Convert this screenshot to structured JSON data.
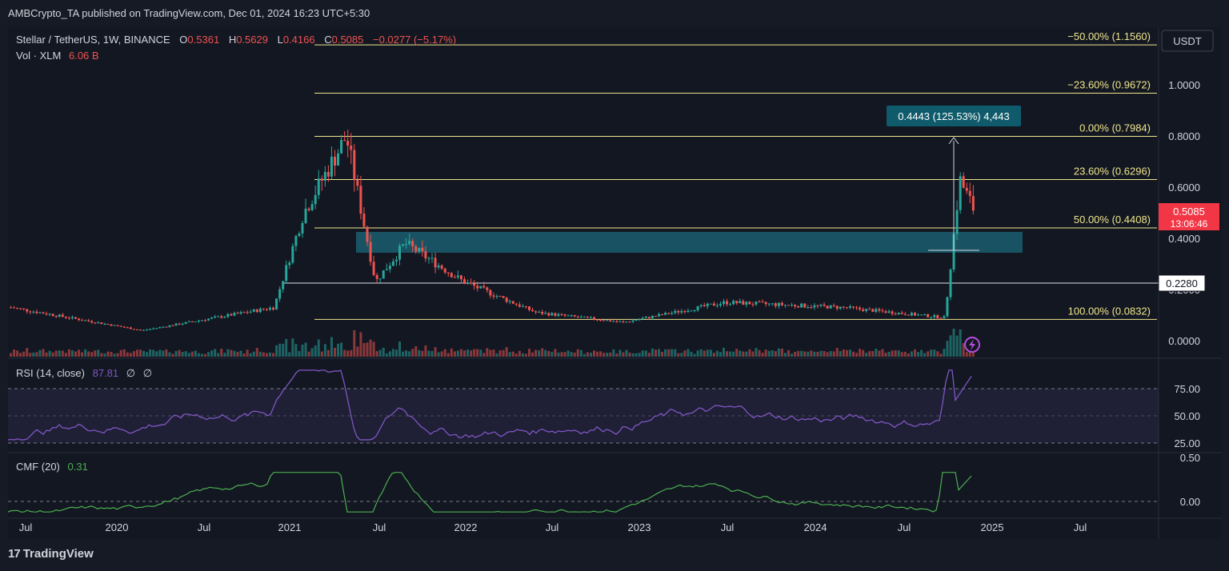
{
  "header": {
    "published": "AMBCrypto_TA published on TradingView.com, Dec 01, 2024 16:23 UTC+5:30"
  },
  "legend": {
    "symbol": "Stellar / TetherUS, 1W, BINANCE",
    "o_label": "O",
    "o": "0.5361",
    "h_label": "H",
    "h": "0.5629",
    "l_label": "L",
    "l": "0.4166",
    "c_label": "C",
    "c": "0.5085",
    "change": "−0.0277 (−5.17%)",
    "vol_label": "Vol · XLM",
    "vol": "6.06 B"
  },
  "price_axis": {
    "currency": "USDT",
    "ticks": [
      "1.0000",
      "0.8000",
      "0.6000",
      "0.4000",
      "0.2000",
      "0.0000"
    ],
    "last_price": "0.5085",
    "countdown": "13:06:46",
    "hline_label": "0.2280"
  },
  "fib_levels": [
    {
      "label": "−50.00% (1.1560)",
      "value": 1.156
    },
    {
      "label": "−23.60% (0.9672)",
      "value": 0.9672
    },
    {
      "label": "0.00% (0.7984)",
      "value": 0.7984
    },
    {
      "label": "23.60% (0.6296)",
      "value": 0.6296
    },
    {
      "label": "50.00% (0.4408)",
      "value": 0.4408
    },
    {
      "label": "100.00% (0.0832)",
      "value": 0.0832
    }
  ],
  "measure": {
    "label": "0.4443 (125.53%) 4,443"
  },
  "rsi": {
    "title": "RSI (14, close)",
    "value": "87.81",
    "extra1": "∅",
    "extra2": "∅",
    "ticks": [
      "75.00",
      "50.00",
      "25.00"
    ]
  },
  "cmf": {
    "title": "CMF (20)",
    "value": "0.31",
    "ticks": [
      "0.50",
      "0.00"
    ]
  },
  "time_axis": [
    "Jul",
    "2020",
    "Jul",
    "2021",
    "Jul",
    "2022",
    "Jul",
    "2023",
    "Jul",
    "2024",
    "Jul",
    "2025",
    "Jul"
  ],
  "footer": {
    "brand": "TradingView",
    "logo": "17"
  },
  "colors": {
    "up": "#26a69a",
    "down": "#ef5350",
    "fib": "#f0e68c",
    "rsi": "#7e57c2",
    "cmf": "#4caf50",
    "zone": "#1b5e6e"
  },
  "chart_data": {
    "type": "candlestick",
    "title": "Stellar / TetherUS, 1W, BINANCE",
    "ylim": [
      0,
      1.2
    ],
    "key_points": [
      {
        "date": "2019-06",
        "close": 0.13
      },
      {
        "date": "2020-03",
        "close": 0.04
      },
      {
        "date": "2020-12",
        "close": 0.13
      },
      {
        "date": "2021-02",
        "close": 0.5
      },
      {
        "date": "2021-05",
        "close": 0.7984
      },
      {
        "date": "2021-07",
        "close": 0.23
      },
      {
        "date": "2021-09",
        "close": 0.38
      },
      {
        "date": "2022-01",
        "close": 0.23
      },
      {
        "date": "2022-06",
        "close": 0.11
      },
      {
        "date": "2022-12",
        "close": 0.072
      },
      {
        "date": "2023-07",
        "close": 0.15
      },
      {
        "date": "2024-03",
        "close": 0.13
      },
      {
        "date": "2024-10",
        "close": 0.09
      },
      {
        "date": "2024-11",
        "close": 0.6296
      },
      {
        "date": "2024-12",
        "close": 0.5085
      }
    ]
  }
}
